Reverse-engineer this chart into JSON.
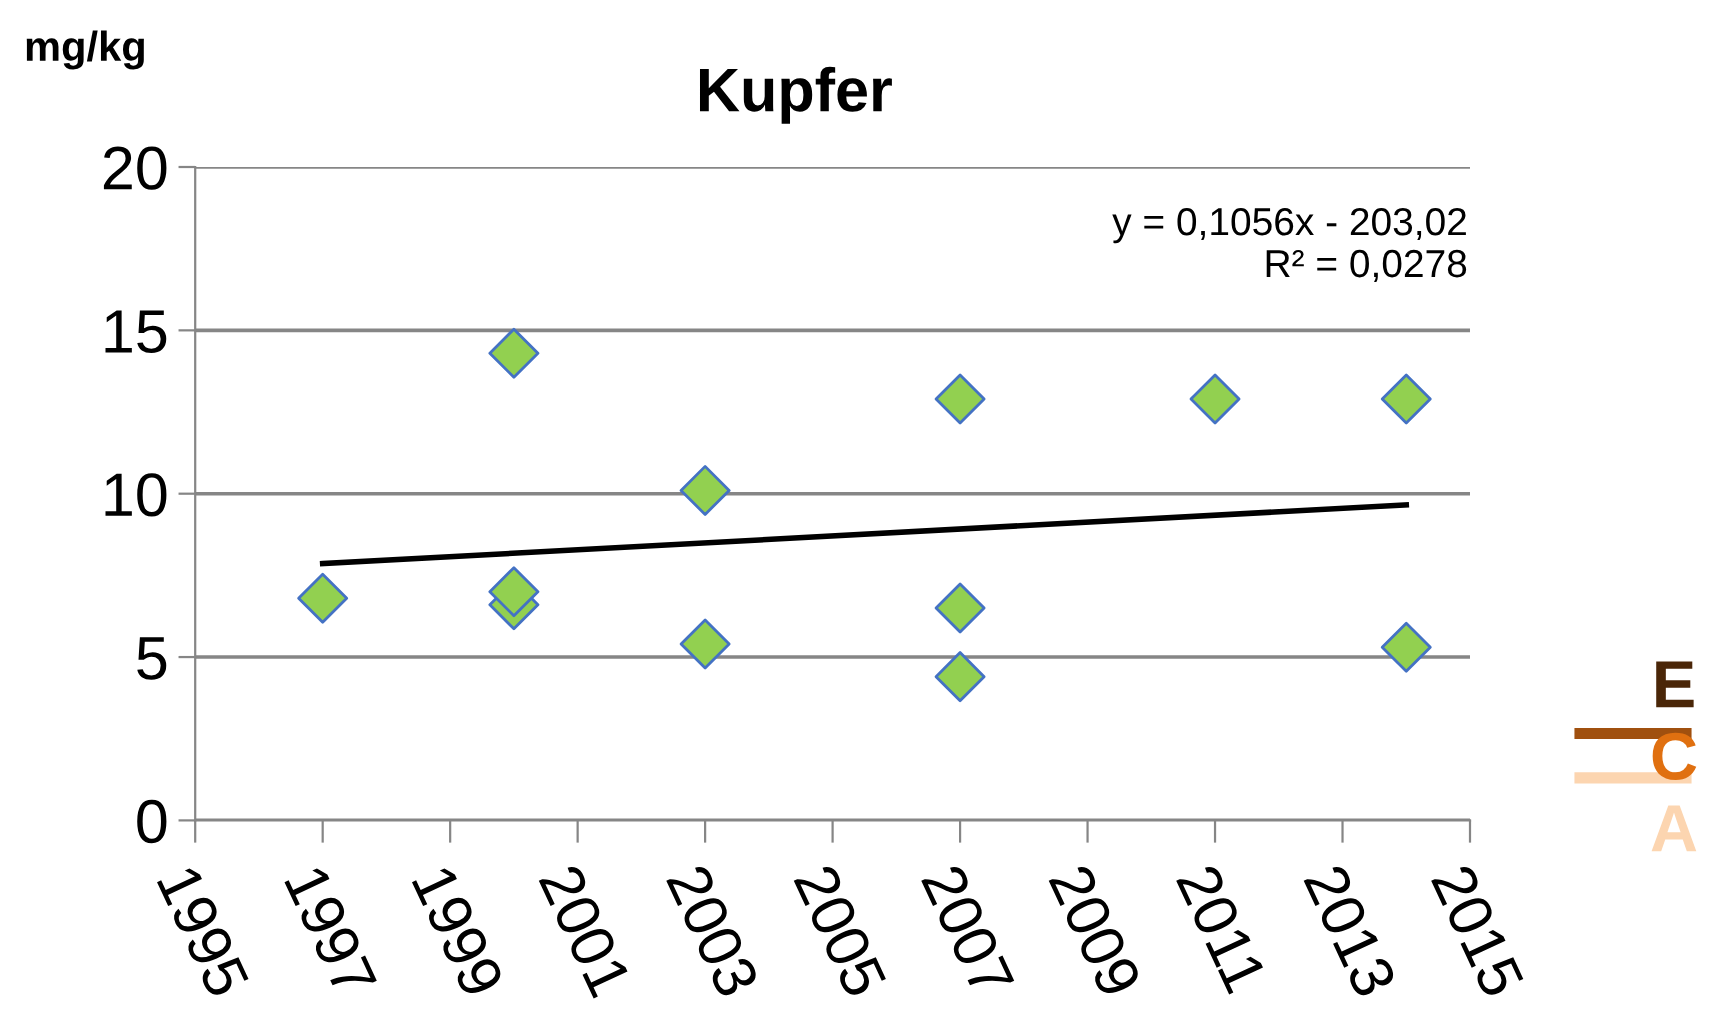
{
  "chart_data": {
    "type": "scatter",
    "title": "Kupfer",
    "ylabel": "mg/kg",
    "x": [
      1997,
      2000,
      2000,
      2000,
      2003,
      2003,
      2007,
      2007,
      2007,
      2011,
      2014,
      2014
    ],
    "series": [
      {
        "color": "#92d050",
        "marker": "diamond",
        "values": [
          6.8,
          14.3,
          6.6,
          7.0,
          10.1,
          5.4,
          12.9,
          6.5,
          4.4,
          12.9,
          12.9,
          5.3
        ]
      },
      {
        "type": "line",
        "color": "#000000",
        "marker": "none",
        "x": [
          1997,
          2014
        ],
        "values": [
          7.86,
          9.66
        ]
      }
    ],
    "xlim": [
      1995,
      2015
    ],
    "xticks": [
      1995,
      1997,
      1999,
      2001,
      2003,
      2005,
      2007,
      2009,
      2011,
      2013,
      2015
    ],
    "ylim": [
      0,
      20
    ],
    "yticks": [
      0,
      5,
      10,
      15,
      20
    ],
    "grid": "y",
    "legend": false,
    "annotations": [
      "y = 0,1056x - 203,02\nR² = 0,0278",
      "E",
      "C",
      "A"
    ]
  }
}
